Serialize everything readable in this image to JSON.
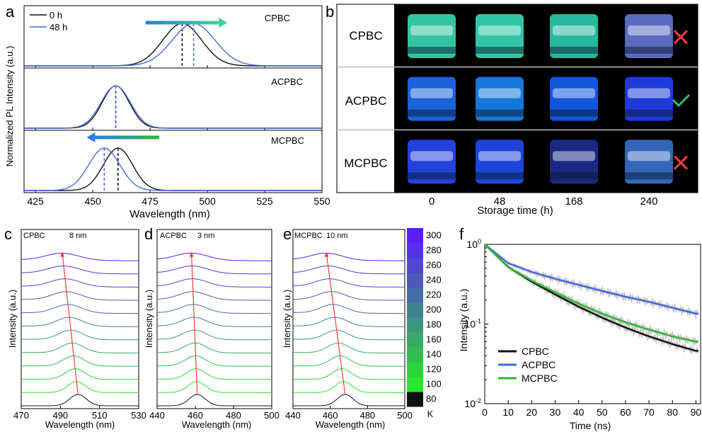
{
  "figure": {
    "panel_letters": {
      "a": "a",
      "b": "b",
      "c": "c",
      "d": "d",
      "e": "e",
      "f": "f"
    },
    "colors": {
      "black": "#111111",
      "blue": "#4169e1",
      "red": "#ff3b3b",
      "green": "#2db82d",
      "gray": "#9a9a9a"
    }
  },
  "chart_data": [
    {
      "panel": "a",
      "type": "line",
      "ylabel": "Normalized PL Intensity (a.u.)",
      "xlabel": "Wavelength (nm)",
      "xlim": [
        420,
        550
      ],
      "x_ticks": [
        425,
        450,
        475,
        500,
        525,
        550
      ],
      "legend": {
        "position": "top-left",
        "entries": [
          "0 h",
          "48 h"
        ]
      },
      "subplots": [
        {
          "label": "CPBC",
          "peaks": {
            "0 h": 489,
            "48 h": 494
          },
          "fwhm": {
            "0 h": 20,
            "48 h": 22
          },
          "arrow": "right"
        },
        {
          "label": "ACPBC",
          "peaks": {
            "0 h": 460,
            "48 h": 460
          },
          "fwhm": {
            "0 h": 14,
            "48 h": 15
          },
          "arrow": "none"
        },
        {
          "label": "MCPBC",
          "peaks": {
            "0 h": 461,
            "48 h": 455
          },
          "fwhm": {
            "0 h": 15,
            "48 h": 16
          },
          "arrow": "left"
        }
      ]
    },
    {
      "panel": "b",
      "type": "table",
      "xlabel": "Storage time (h)",
      "columns": [
        "0",
        "48",
        "168",
        "240"
      ],
      "rows": [
        {
          "label": "CPBC",
          "colors": [
            "#3de6c0",
            "#39e8c2",
            "#2fd8b8",
            "#6a7de0"
          ],
          "result": "cross"
        },
        {
          "label": "ACPBC",
          "colors": [
            "#1f74ff",
            "#1a8cff",
            "#1466ff",
            "#2244ff"
          ],
          "result": "check"
        },
        {
          "label": "MCPBC",
          "colors": [
            "#2a4cff",
            "#2250ff",
            "#1c2f9a",
            "#3c78d8"
          ],
          "result": "cross"
        }
      ]
    },
    {
      "panel": "c",
      "type": "line",
      "label": "CPBC",
      "shift": "8 nm",
      "ylabel": "Intensity (a.u.)",
      "xlabel": "Wavelength (nm)",
      "xlim": [
        470,
        530
      ],
      "x_ticks": [
        470,
        490,
        510,
        530
      ],
      "peak_at_80K": 499,
      "peak_at_300K": 491
    },
    {
      "panel": "d",
      "type": "line",
      "label": "ACPBC",
      "shift": "3 nm",
      "ylabel": "Intensity (a.u.)",
      "xlabel": "Wavelength (nm)",
      "xlim": [
        440,
        500
      ],
      "x_ticks": [
        440,
        460,
        480,
        500
      ],
      "peak_at_80K": 461,
      "peak_at_300K": 458
    },
    {
      "panel": "e",
      "type": "line",
      "label": "MCPBC",
      "shift": "10 nm",
      "ylabel": "Intensity (a.u.)",
      "xlabel": "Wavelength (nm)",
      "xlim": [
        440,
        500
      ],
      "x_ticks": [
        440,
        460,
        480,
        500
      ],
      "peak_at_80K": 468,
      "peak_at_300K": 458
    },
    {
      "panel": "colorbar",
      "type": "heatmap",
      "unit": "K",
      "ticks": [
        80,
        100,
        120,
        140,
        160,
        180,
        200,
        220,
        240,
        260,
        280,
        300
      ],
      "temperatures": [
        80,
        100,
        120,
        140,
        160,
        180,
        200,
        220,
        240,
        260,
        280,
        300
      ]
    },
    {
      "panel": "f",
      "type": "line",
      "ylabel": "Intensity (a.u.)",
      "xlabel": "Time (ns)",
      "yscale": "log",
      "xlim": [
        0,
        92
      ],
      "ylim": [
        0.01,
        1
      ],
      "x_ticks": [
        0,
        10,
        20,
        30,
        40,
        50,
        60,
        70,
        80,
        90
      ],
      "y_ticks": [
        {
          "base": "10",
          "exp": "0"
        },
        {
          "base": "10",
          "exp": "-1"
        },
        {
          "base": "10",
          "exp": "-2"
        }
      ],
      "legend": {
        "position": "bottom-left"
      },
      "series": [
        {
          "name": "CPBC",
          "color": "#111111",
          "values_at": {
            "x": [
              0,
              10,
              20,
              30,
              40,
              50,
              60,
              70,
              80,
              90
            ],
            "y": [
              1.0,
              0.52,
              0.34,
              0.235,
              0.165,
              0.12,
              0.09,
              0.07,
              0.056,
              0.046
            ]
          }
        },
        {
          "name": "ACPBC",
          "color": "#4169e1",
          "values_at": {
            "x": [
              0,
              10,
              20,
              30,
              40,
              50,
              60,
              70,
              80,
              90
            ],
            "y": [
              1.0,
              0.58,
              0.45,
              0.37,
              0.31,
              0.26,
              0.22,
              0.19,
              0.16,
              0.135
            ]
          }
        },
        {
          "name": "MCPBC",
          "color": "#2db82d",
          "values_at": {
            "x": [
              0,
              10,
              20,
              30,
              40,
              50,
              60,
              70,
              80,
              90
            ],
            "y": [
              1.0,
              0.52,
              0.35,
              0.25,
              0.18,
              0.135,
              0.105,
              0.085,
              0.07,
              0.06
            ]
          }
        }
      ]
    }
  ]
}
